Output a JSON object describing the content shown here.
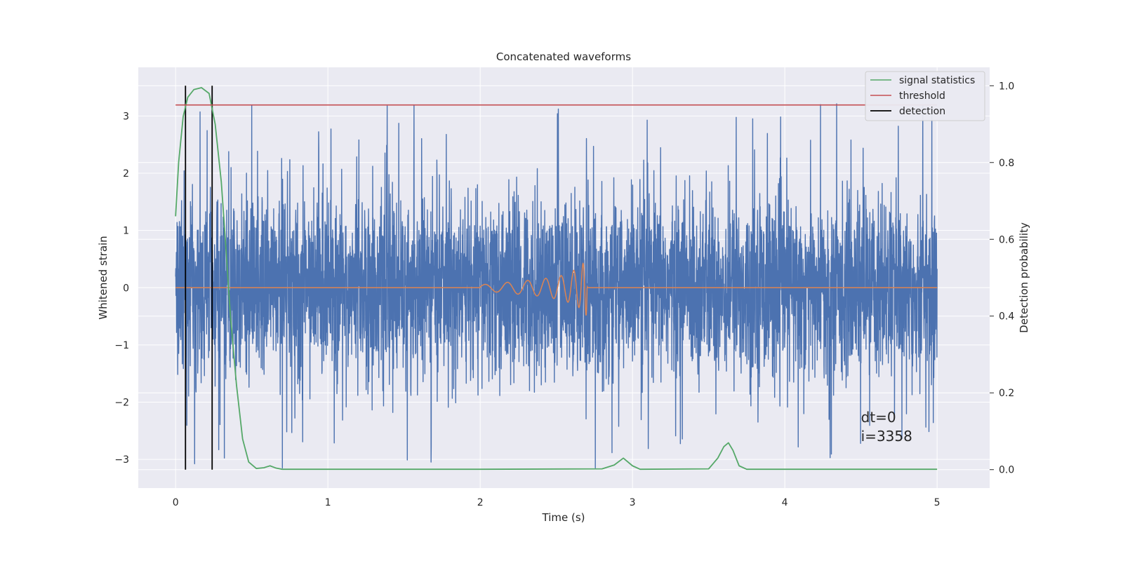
{
  "chart_data": {
    "type": "line",
    "title": "Concatenated waveforms",
    "xlabel": "Time (s)",
    "ylabel": "Whitened strain",
    "y2label": "Detection probability",
    "xlim": [
      -0.245,
      5.345
    ],
    "ylim": [
      -3.5,
      3.85
    ],
    "y2lim": [
      -0.048,
      1.048
    ],
    "xticks": [
      0,
      1,
      2,
      3,
      4,
      5
    ],
    "yticks": [
      -3,
      -2,
      -1,
      0,
      1,
      2,
      3
    ],
    "y2ticks": [
      0.0,
      0.2,
      0.4,
      0.6,
      0.8,
      1.0
    ],
    "xtick_labels": [
      "0",
      "1",
      "2",
      "3",
      "4",
      "5"
    ],
    "ytick_labels": [
      "−3",
      "−2",
      "−1",
      "0",
      "1",
      "2",
      "3"
    ],
    "y2tick_labels": [
      "0.0",
      "0.2",
      "0.4",
      "0.6",
      "0.8",
      "1.0"
    ],
    "grid": true,
    "legend_position": "top-right",
    "series": [
      {
        "name": "",
        "axis": "left",
        "color": "#4c72b0",
        "kind": "noise",
        "x_range": [
          0,
          5
        ],
        "typical_range": [
          -1.6,
          1.6
        ],
        "extreme_range": [
          -3.15,
          3.4
        ]
      },
      {
        "name": "",
        "axis": "left",
        "color": "#dd8452",
        "kind": "chirp",
        "x": [
          0,
          2.0,
          2.2,
          2.4,
          2.55,
          2.65,
          2.7,
          2.705,
          5
        ],
        "amplitude": [
          0,
          0.05,
          0.1,
          0.15,
          0.22,
          0.35,
          0.5,
          0,
          0
        ]
      },
      {
        "name": "signal statistics",
        "axis": "right",
        "color": "#55a868",
        "x": [
          0,
          0.02,
          0.05,
          0.08,
          0.12,
          0.17,
          0.22,
          0.26,
          0.3,
          0.33,
          0.36,
          0.4,
          0.44,
          0.48,
          0.53,
          0.58,
          0.62,
          0.66,
          0.7,
          1.0,
          2.0,
          2.8,
          2.88,
          2.94,
          3.0,
          3.05,
          3.5,
          3.56,
          3.6,
          3.63,
          3.66,
          3.7,
          3.75,
          4.0,
          5.0
        ],
        "y": [
          0.66,
          0.8,
          0.92,
          0.97,
          0.99,
          0.995,
          0.98,
          0.9,
          0.75,
          0.58,
          0.4,
          0.22,
          0.08,
          0.02,
          0.003,
          0.005,
          0.01,
          0.004,
          0.001,
          0.001,
          0.001,
          0.002,
          0.012,
          0.03,
          0.01,
          0.001,
          0.002,
          0.03,
          0.06,
          0.07,
          0.05,
          0.01,
          0.001,
          0.001,
          0.001
        ]
      },
      {
        "name": "threshold",
        "axis": "right",
        "color": "#c44e52",
        "x": [
          0,
          5
        ],
        "y": [
          0.95,
          0.95
        ]
      },
      {
        "name": "detection",
        "axis": "right",
        "color": "#000000",
        "kind": "vlines",
        "x": [
          0.065,
          0.24
        ],
        "y": [
          0.0,
          1.0
        ]
      }
    ],
    "annotations": [
      {
        "text": "dt=0",
        "x": 4.5,
        "y": -2.35
      },
      {
        "text": "i=3358",
        "x": 4.5,
        "y": -2.68
      }
    ],
    "colors": {
      "axes_background": "#eaeaf2",
      "grid": "#ffffff",
      "text": "#262626"
    }
  }
}
